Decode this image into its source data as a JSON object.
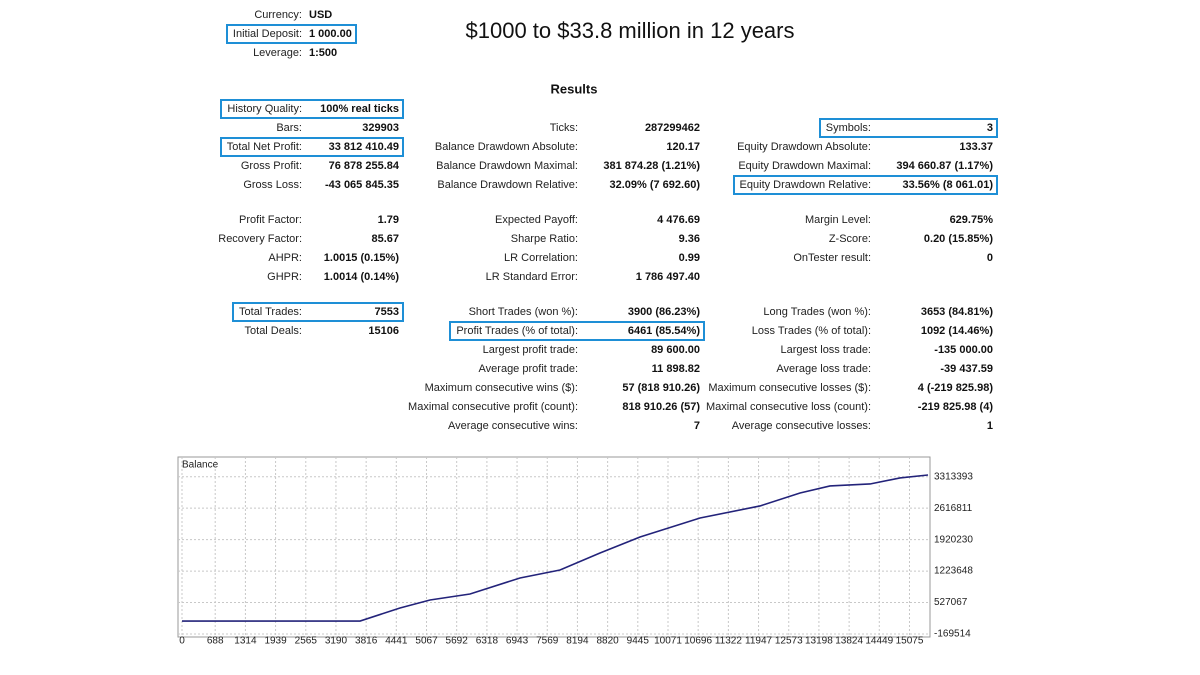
{
  "header": {
    "rows": [
      {
        "label": "Currency:",
        "value": "USD",
        "highlight": false
      },
      {
        "label": "Initial Deposit:",
        "value": "1 000.00",
        "highlight": true
      },
      {
        "label": "Leverage:",
        "value": "1:500",
        "highlight": false
      }
    ],
    "title": "$1000 to $33.8 million in 12 years",
    "section": "Results"
  },
  "groups": [
    [
      [
        {
          "label": "History Quality:",
          "value": "100% real ticks",
          "highlight": true
        },
        null,
        null
      ],
      [
        {
          "label": "Bars:",
          "value": "329903",
          "highlight": false
        },
        {
          "label": "Ticks:",
          "value": "287299462",
          "highlight": false
        },
        {
          "label": "Symbols:",
          "value": "3",
          "highlight": true
        }
      ],
      [
        {
          "label": "Total Net Profit:",
          "value": "33 812 410.49",
          "highlight": true
        },
        {
          "label": "Balance Drawdown Absolute:",
          "value": "120.17",
          "highlight": false
        },
        {
          "label": "Equity Drawdown Absolute:",
          "value": "133.37",
          "highlight": false
        }
      ],
      [
        {
          "label": "Gross Profit:",
          "value": "76 878 255.84",
          "highlight": false
        },
        {
          "label": "Balance Drawdown Maximal:",
          "value": "381 874.28 (1.21%)",
          "highlight": false
        },
        {
          "label": "Equity Drawdown Maximal:",
          "value": "394 660.87 (1.17%)",
          "highlight": false
        }
      ],
      [
        {
          "label": "Gross Loss:",
          "value": "-43 065 845.35",
          "highlight": false
        },
        {
          "label": "Balance Drawdown Relative:",
          "value": "32.09% (7 692.60)",
          "highlight": false
        },
        {
          "label": "Equity Drawdown Relative:",
          "value": "33.56% (8 061.01)",
          "highlight": true
        }
      ]
    ],
    [
      [
        {
          "label": "Profit Factor:",
          "value": "1.79",
          "highlight": false
        },
        {
          "label": "Expected Payoff:",
          "value": "4 476.69",
          "highlight": false
        },
        {
          "label": "Margin Level:",
          "value": "629.75%",
          "highlight": false
        }
      ],
      [
        {
          "label": "Recovery Factor:",
          "value": "85.67",
          "highlight": false
        },
        {
          "label": "Sharpe Ratio:",
          "value": "9.36",
          "highlight": false
        },
        {
          "label": "Z-Score:",
          "value": "0.20 (15.85%)",
          "highlight": false
        }
      ],
      [
        {
          "label": "AHPR:",
          "value": "1.0015 (0.15%)",
          "highlight": false
        },
        {
          "label": "LR Correlation:",
          "value": "0.99",
          "highlight": false
        },
        {
          "label": "OnTester result:",
          "value": "0",
          "highlight": false
        }
      ],
      [
        {
          "label": "GHPR:",
          "value": "1.0014 (0.14%)",
          "highlight": false
        },
        {
          "label": "LR Standard Error:",
          "value": "1 786 497.40",
          "highlight": false
        },
        null
      ]
    ],
    [
      [
        {
          "label": "Total Trades:",
          "value": "7553",
          "highlight": true
        },
        {
          "label": "Short Trades (won %):",
          "value": "3900 (86.23%)",
          "highlight": false
        },
        {
          "label": "Long Trades (won %):",
          "value": "3653 (84.81%)",
          "highlight": false
        }
      ],
      [
        {
          "label": "Total Deals:",
          "value": "15106",
          "highlight": false
        },
        {
          "label": "Profit Trades (% of total):",
          "value": "6461 (85.54%)",
          "highlight": true
        },
        {
          "label": "Loss Trades (% of total):",
          "value": "1092 (14.46%)",
          "highlight": false
        }
      ],
      [
        null,
        {
          "label": "Largest profit trade:",
          "value": "89 600.00",
          "highlight": false
        },
        {
          "label": "Largest loss trade:",
          "value": "-135 000.00",
          "highlight": false
        }
      ],
      [
        null,
        {
          "label": "Average profit trade:",
          "value": "11 898.82",
          "highlight": false
        },
        {
          "label": "Average loss trade:",
          "value": "-39 437.59",
          "highlight": false
        }
      ],
      [
        null,
        {
          "label": "Maximum consecutive wins ($):",
          "value": "57 (818 910.26)",
          "highlight": false
        },
        {
          "label": "Maximum consecutive losses ($):",
          "value": "4 (-219 825.98)",
          "highlight": false
        }
      ],
      [
        null,
        {
          "label": "Maximal consecutive profit (count):",
          "value": "818 910.26 (57)",
          "highlight": false
        },
        {
          "label": "Maximal consecutive loss (count):",
          "value": "-219 825.98 (4)",
          "highlight": false
        }
      ],
      [
        null,
        {
          "label": "Average consecutive wins:",
          "value": "7",
          "highlight": false
        },
        {
          "label": "Average consecutive losses:",
          "value": "1",
          "highlight": false
        }
      ]
    ]
  ],
  "chart_data": {
    "type": "line",
    "title": "Balance",
    "color": "#23237a",
    "grid": true,
    "x": [
      0,
      3690,
      4517,
      5139,
      5968,
      7004,
      7833,
      8662,
      9491,
      10735,
      11978,
      12807,
      13428,
      14257,
      14878,
      15459
    ],
    "values": [
      118000,
      118000,
      406000,
      584000,
      716000,
      1071000,
      1248000,
      1625000,
      1979000,
      2400000,
      2666000,
      2953000,
      3109000,
      3153000,
      3286000,
      3352000
    ],
    "xlim": [
      0,
      15500
    ],
    "ylim": [
      -236000,
      3684000
    ],
    "xticks": [
      0,
      688,
      1314,
      1939,
      2565,
      3190,
      3816,
      4441,
      5067,
      5692,
      6318,
      6943,
      7569,
      8194,
      8820,
      9445,
      10071,
      10696,
      11322,
      11947,
      12573,
      13198,
      13824,
      14449,
      15075
    ],
    "yticks": [
      3313393,
      2616811,
      1920230,
      1223648,
      527067,
      -169514
    ]
  }
}
